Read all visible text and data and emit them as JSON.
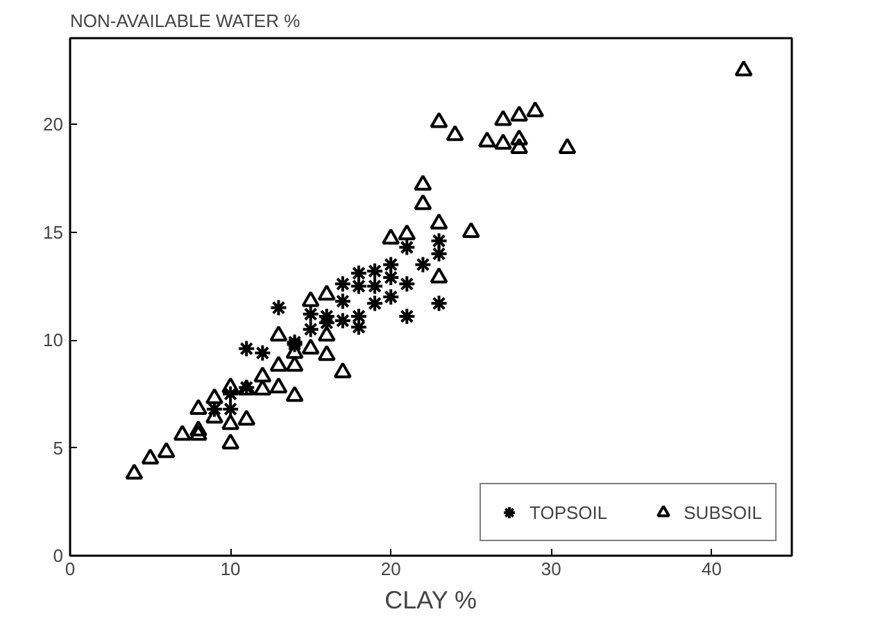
{
  "chart_data": {
    "type": "scatter",
    "xlabel": "CLAY %",
    "ylabel": "NON-AVAILABLE WATER %",
    "xlim": [
      0,
      45
    ],
    "ylim": [
      0,
      24
    ],
    "xticks": [
      0,
      10,
      20,
      30,
      40
    ],
    "yticks": [
      0,
      5,
      10,
      15,
      20
    ],
    "grid": false,
    "legend": "bottom right",
    "series": [
      {
        "name": "TOPSOIL",
        "color": "#000000",
        "marker": "cross",
        "x": [
          9,
          10,
          10,
          11,
          11,
          12,
          13,
          14,
          14,
          15,
          15,
          16,
          16,
          17,
          17,
          17,
          18,
          18,
          18,
          18,
          19,
          19,
          19,
          20,
          20,
          20,
          21,
          21,
          21,
          22,
          23,
          23,
          23
        ],
        "values": [
          6.8,
          7.5,
          6.8,
          9.6,
          7.8,
          9.4,
          11.5,
          9.9,
          9.8,
          11.2,
          10.5,
          11.1,
          10.8,
          12.6,
          10.9,
          11.8,
          13.1,
          10.6,
          12.5,
          11.1,
          13.2,
          11.7,
          12.5,
          13.5,
          12.0,
          12.9,
          11.1,
          12.6,
          14.3,
          13.5,
          14.6,
          14.0,
          11.7
        ]
      },
      {
        "name": "SUBSOIL",
        "color": "#000000",
        "marker": "triangle",
        "x": [
          4,
          5,
          6,
          7,
          8,
          8,
          8,
          9,
          9,
          10,
          10,
          10,
          11,
          11,
          12,
          12,
          13,
          13,
          13,
          14,
          14,
          14,
          15,
          15,
          16,
          16,
          16,
          17,
          20,
          21,
          22,
          22,
          23,
          23,
          23,
          24,
          25,
          26,
          27,
          27,
          28,
          28,
          28,
          29,
          31,
          42
        ],
        "values": [
          3.8,
          4.5,
          4.8,
          5.6,
          5.6,
          6.8,
          5.8,
          7.3,
          6.4,
          5.2,
          6.1,
          7.8,
          6.3,
          7.7,
          7.7,
          8.3,
          7.8,
          8.8,
          10.2,
          7.4,
          8.8,
          9.4,
          9.6,
          11.8,
          9.3,
          12.1,
          10.2,
          8.5,
          14.7,
          14.9,
          17.2,
          16.3,
          15.4,
          12.9,
          20.1,
          19.5,
          15.0,
          19.2,
          20.2,
          19.1,
          20.4,
          19.3,
          18.9,
          20.6,
          18.9,
          22.5
        ]
      }
    ]
  }
}
